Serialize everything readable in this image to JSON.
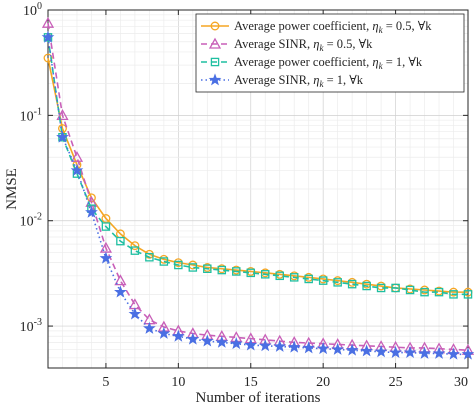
{
  "chart_data": {
    "type": "line",
    "title": "",
    "xlabel": "Number of iterations",
    "ylabel": "NMSE",
    "xlim": [
      1,
      30
    ],
    "ylim": [
      0.0004,
      1
    ],
    "yscale": "log",
    "grid": true,
    "legend_position": "top-right",
    "x_ticks": [
      5,
      10,
      15,
      20,
      25,
      30
    ],
    "x_tick_labels": [
      "5",
      "10",
      "15",
      "20",
      "25",
      "30"
    ],
    "y_ticks": [
      0.001,
      0.01,
      0.1,
      1
    ],
    "y_tick_labels": [
      {
        "base": "10",
        "exp": "-3"
      },
      {
        "base": "10",
        "exp": "-2"
      },
      {
        "base": "10",
        "exp": "-1"
      },
      {
        "base": "10",
        "exp": "0"
      }
    ],
    "x": [
      1,
      2,
      3,
      4,
      5,
      6,
      7,
      8,
      9,
      10,
      11,
      12,
      13,
      14,
      15,
      16,
      17,
      18,
      19,
      20,
      21,
      22,
      23,
      24,
      25,
      26,
      27,
      28,
      29,
      30
    ],
    "series": [
      {
        "name": "Average power coefficient, ηk = 0.5, ∀k",
        "legend": {
          "main": "Average power coefficient, ",
          "sym": "η",
          "sub": "k",
          "rest": " = 0.5, ∀k"
        },
        "color": "#f5a623",
        "marker": "circle",
        "dash": "solid",
        "values": [
          0.35,
          0.075,
          0.034,
          0.0165,
          0.0105,
          0.0075,
          0.0058,
          0.0048,
          0.0043,
          0.004,
          0.0038,
          0.0036,
          0.0035,
          0.0034,
          0.0033,
          0.0032,
          0.0031,
          0.003,
          0.0029,
          0.0028,
          0.0027,
          0.0026,
          0.0025,
          0.0024,
          0.0023,
          0.00225,
          0.0022,
          0.00215,
          0.0021,
          0.0021
        ]
      },
      {
        "name": "Average SINR, ηk = 0.5, ∀k",
        "legend": {
          "main": "Average SINR, ",
          "sym": "η",
          "sub": "k",
          "rest": " = 0.5, ∀k"
        },
        "color": "#c85fb8",
        "marker": "triangle",
        "dash": "dashed",
        "values": [
          0.75,
          0.1,
          0.04,
          0.015,
          0.0055,
          0.0027,
          0.0016,
          0.00115,
          0.00098,
          0.0009,
          0.00085,
          0.00082,
          0.0008,
          0.00078,
          0.00076,
          0.00074,
          0.00072,
          0.0007,
          0.00069,
          0.00068,
          0.00067,
          0.00066,
          0.00065,
          0.00064,
          0.00063,
          0.00062,
          0.00062,
          0.00061,
          0.0006,
          0.00059
        ]
      },
      {
        "name": "Average power coefficient, ηk = 1, ∀k",
        "legend": {
          "main": "Average power coefficient, ",
          "sym": "η",
          "sub": "k",
          "rest": " = 1, ∀k"
        },
        "color": "#1fbfa1",
        "marker": "square",
        "dash": "dashed",
        "values": [
          0.55,
          0.062,
          0.028,
          0.013,
          0.0088,
          0.0064,
          0.0052,
          0.0045,
          0.0041,
          0.0038,
          0.0036,
          0.0035,
          0.0034,
          0.0033,
          0.0032,
          0.0031,
          0.003,
          0.0029,
          0.0028,
          0.0027,
          0.0026,
          0.0025,
          0.0024,
          0.0023,
          0.0023,
          0.0022,
          0.0021,
          0.0021,
          0.002,
          0.002
        ]
      },
      {
        "name": "Average SINR, ηk = 1, ∀k",
        "legend": {
          "main": "Average SINR, ",
          "sym": "η",
          "sub": "k",
          "rest": " = 1, ∀k"
        },
        "color": "#4a6fe3",
        "marker": "star",
        "dash": "dotted",
        "values": [
          0.55,
          0.062,
          0.03,
          0.012,
          0.0044,
          0.0021,
          0.0013,
          0.00095,
          0.00085,
          0.0008,
          0.00075,
          0.00072,
          0.0007,
          0.00068,
          0.00066,
          0.00065,
          0.00064,
          0.00063,
          0.00062,
          0.00061,
          0.0006,
          0.00059,
          0.00058,
          0.00057,
          0.00056,
          0.00056,
          0.00055,
          0.00055,
          0.00054,
          0.00054
        ]
      }
    ]
  }
}
